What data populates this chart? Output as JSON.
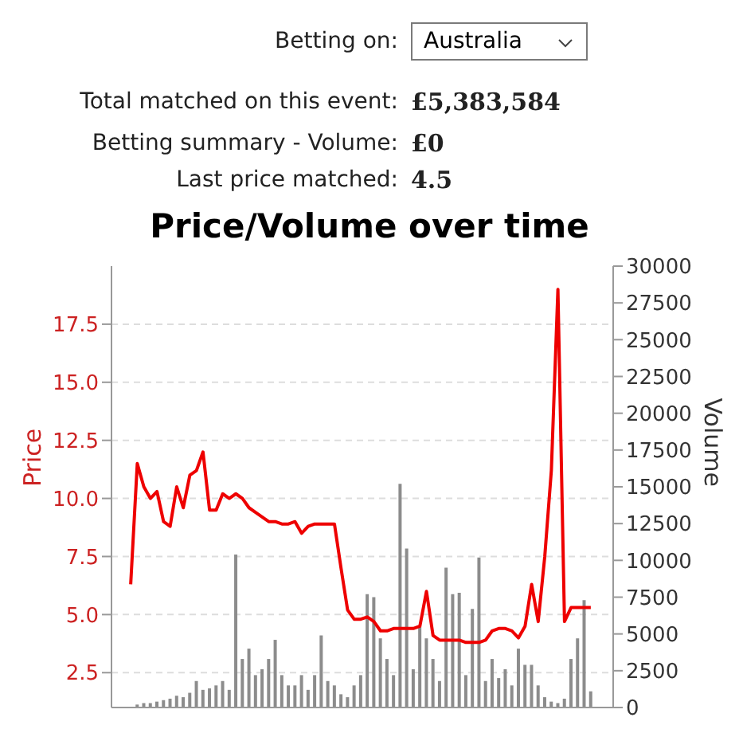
{
  "chart_data": {
    "type": "line",
    "title": "Price/Volume over time",
    "annotations": [
      "Betting on:",
      "Australia",
      "Total matched on this event:",
      "£5,383,584",
      "Betting summary - Volume:",
      "£0",
      "Last price matched:",
      "4.5"
    ],
    "ylabel": "Price",
    "y2label": "Volume",
    "categories": [
      null,
      null,
      null,
      null,
      null,
      null,
      null,
      null,
      null,
      null,
      null,
      null,
      null,
      null,
      null,
      null,
      null,
      null,
      null,
      null,
      null,
      null,
      null,
      null,
      null,
      null,
      null,
      null,
      null,
      null,
      null,
      null,
      null,
      null,
      null,
      null,
      null,
      null,
      null,
      null,
      null,
      null,
      null,
      null,
      null,
      null,
      null,
      null,
      null,
      null,
      null,
      null,
      null,
      null,
      null,
      null,
      null,
      null,
      null,
      null,
      null,
      null,
      null,
      null,
      null,
      null,
      null,
      null,
      null,
      null,
      null
    ],
    "ylim": [
      1,
      20
    ],
    "yticks": [
      2.5,
      {
        "value": 5,
        "label": "5.0"
      },
      7.5,
      {
        "value": 10,
        "label": "10.0"
      },
      12.5,
      {
        "value": 15,
        "label": "15.0"
      },
      17.5
    ],
    "y2lim": [
      0,
      30000
    ],
    "y2ticks": [
      0,
      2500,
      5000,
      7500,
      10000,
      12500,
      15000,
      17500,
      20000,
      22500,
      25000,
      27500,
      30000
    ],
    "grid": "y",
    "tick_labels": "y",
    "series": [
      {
        "type": "bar",
        "axis": "y2",
        "color": "#8c8c8c",
        "values": [
          null,
          200,
          300,
          300,
          400,
          500,
          600,
          800,
          700,
          1000,
          1800,
          1200,
          1300,
          1500,
          1800,
          1200,
          10400,
          3300,
          4000,
          2200,
          2600,
          3300,
          4600,
          2200,
          1500,
          1500,
          2200,
          1200,
          2200,
          4900,
          1800,
          1500,
          900,
          700,
          1500,
          2200,
          7700,
          7500,
          4700,
          3300,
          2200,
          15200,
          10800,
          2600,
          5500,
          4700,
          3300,
          1800,
          9500,
          7700,
          7800,
          2200,
          6700,
          10200,
          1800,
          3300,
          2000,
          2600,
          1500,
          4000,
          2900,
          2900,
          1500,
          700,
          400,
          300,
          600,
          3300,
          4700,
          7300,
          1100
        ]
      },
      {
        "color": "#ee0000",
        "values": [
          6.3,
          11.5,
          10.5,
          10.0,
          10.3,
          9.0,
          8.8,
          10.5,
          9.6,
          11.0,
          11.2,
          12.0,
          9.5,
          9.5,
          10.2,
          10.0,
          10.2,
          10.0,
          9.6,
          9.4,
          9.2,
          9.0,
          9.0,
          8.9,
          8.9,
          9.0,
          8.5,
          8.8,
          8.9,
          8.9,
          8.9,
          8.9,
          7.0,
          5.2,
          4.8,
          4.8,
          4.9,
          4.7,
          4.3,
          4.3,
          4.4,
          4.4,
          4.4,
          4.4,
          4.5,
          6.0,
          4.1,
          3.9,
          3.9,
          3.9,
          3.9,
          3.8,
          3.8,
          3.8,
          3.9,
          4.3,
          4.4,
          4.4,
          4.3,
          4.0,
          4.5,
          6.3,
          4.7,
          7.5,
          11.2,
          19.0,
          4.7,
          5.3,
          5.3,
          5.3,
          5.3
        ]
      }
    ]
  }
}
